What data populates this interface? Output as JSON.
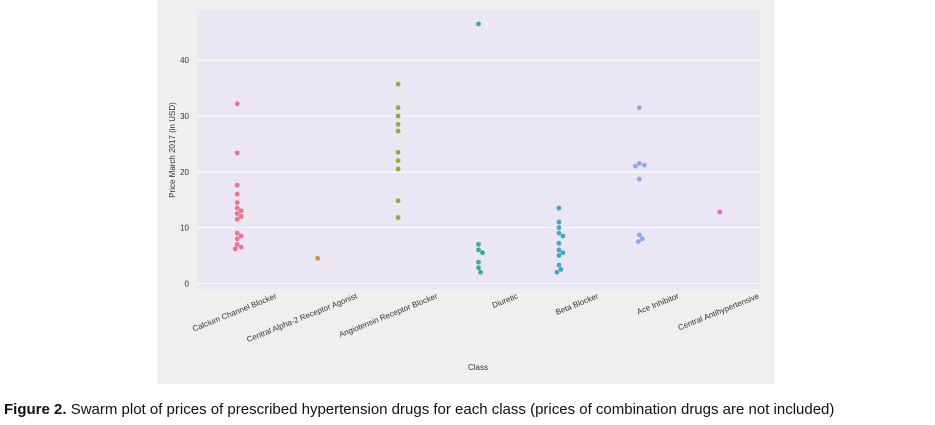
{
  "chart_data": {
    "type": "swarm",
    "xlabel": "Class",
    "ylabel": "Price March 2017 (in USD)",
    "categories": [
      "Calcium Channel Blocker",
      "Central Alpha-2 Receptor Agonist",
      "Angiotensin Receptor Blocker",
      "Diuretic",
      "Beta Blocker",
      "Ace Inhibitor",
      "Central Antihypertensive"
    ],
    "colors": [
      "#f0728a",
      "#d4903a",
      "#8fab38",
      "#3aae80",
      "#3aabc0",
      "#8ea6ee",
      "#ef5fd9"
    ],
    "values": [
      [
        32.2,
        23.4,
        17.6,
        16,
        14.5,
        13.5,
        13,
        12.5,
        12,
        11.5,
        9,
        8.5,
        8,
        7,
        6.5,
        6.2
      ],
      [
        4.5
      ],
      [
        35.7,
        31.5,
        30,
        28.5,
        27.3,
        23.5,
        22,
        20.5,
        14.8,
        11.8
      ],
      [
        46.5,
        7,
        6,
        5.5,
        3.8,
        2.8,
        2
      ],
      [
        13.5,
        11,
        10,
        9,
        8.5,
        7.2,
        6,
        5.5,
        5,
        3.3,
        2.5,
        2
      ],
      [
        31.5,
        21.5,
        21.2,
        21,
        18.7,
        8.7,
        8,
        7.5
      ],
      [
        12.8
      ]
    ],
    "ylim": [
      -1,
      49
    ],
    "yticks": [
      0,
      10,
      20,
      30,
      40
    ],
    "grid": true,
    "caption_label": "Figure 2.",
    "caption": "Swarm plot of prices of prescribed hypertension drugs for each class (prices of combination drugs are not included)"
  }
}
